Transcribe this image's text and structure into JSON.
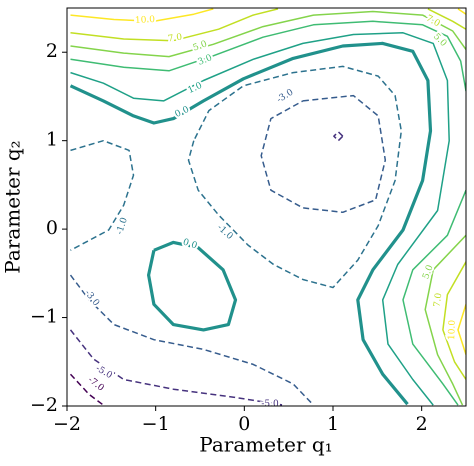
{
  "chart_data": {
    "type": "contour",
    "xlabel": "Parameter q₁",
    "ylabel": "Parameter q₂",
    "xlim": [
      -2,
      2.5
    ],
    "ylim": [
      -2,
      2.5
    ],
    "xticks": [
      {
        "value": -2,
        "label": "−2"
      },
      {
        "value": -1,
        "label": "−1"
      },
      0,
      1,
      2
    ],
    "yticks": [
      {
        "value": -2,
        "label": "−2"
      },
      {
        "value": -1,
        "label": "−1"
      },
      0,
      1,
      2
    ],
    "series": [
      {
        "level": -7,
        "label": "-7.0",
        "color": "#440154",
        "x": [
          -1.96,
          -1.75,
          -1.59
        ],
        "y": [
          -1.64,
          -1.87,
          -1.99
        ]
      },
      {
        "level": -5,
        "label": "-5.0",
        "color": "#46327e",
        "x": [
          -1.96,
          -1.7,
          -1.36,
          -0.8,
          -0.12,
          0.44,
          null,
          1.11,
          1.06,
          1.01,
          1.06,
          1.11
        ],
        "y": [
          -1.14,
          -1.47,
          -1.7,
          -1.81,
          -1.9,
          -1.99,
          null,
          1.05,
          1.1,
          1.05,
          1.0,
          1.05
        ]
      },
      {
        "level": -3,
        "label": "-3.0",
        "color": "#365c8d",
        "x": [
          0.66,
          1.23,
          1.51,
          1.59,
          1.48,
          1.11,
          0.66,
          0.3,
          0.19,
          0.3,
          0.66,
          null,
          -1.96,
          -1.75,
          -1.47,
          -1.02,
          -0.46,
          0.1,
          0.55,
          0.78
        ],
        "y": [
          1.45,
          1.51,
          1.28,
          0.78,
          0.33,
          0.19,
          0.24,
          0.44,
          0.83,
          1.25,
          1.45,
          null,
          -0.52,
          -0.8,
          -1.08,
          -1.25,
          -1.36,
          -1.53,
          -1.75,
          -1.99
        ]
      },
      {
        "level": -1,
        "label": "-1.0",
        "color": "#2c728e",
        "x": [
          -1.96,
          -1.59,
          -1.3,
          -1.25,
          -1.36,
          -1.53,
          -1.96,
          null,
          -0.57,
          -0.63,
          -0.52,
          -0.29,
          0.04,
          0.33,
          0.66,
          1.0,
          1.28,
          1.51,
          1.7,
          1.77,
          1.7,
          1.51,
          1.11,
          0.55,
          -0.01,
          -0.4,
          -0.57
        ],
        "y": [
          0.89,
          1.0,
          0.89,
          0.61,
          0.27,
          -0.01,
          -0.24,
          null,
          1.0,
          0.78,
          0.44,
          0.16,
          -0.18,
          -0.4,
          -0.57,
          -0.66,
          -0.35,
          0.04,
          0.55,
          1.11,
          1.51,
          1.73,
          1.84,
          1.77,
          1.62,
          1.34,
          1.0
        ]
      },
      {
        "level": 0,
        "label": "0.0",
        "color": "#21918c",
        "x": [
          -1.96,
          -1.59,
          -1.25,
          -1.02,
          -0.8,
          -0.46,
          -0.01,
          0.55,
          1.11,
          1.56,
          1.9,
          2.07,
          2.1,
          2.01,
          1.79,
          1.45,
          1.28,
          1.34,
          1.56,
          1.84,
          null,
          -1.02,
          -0.8,
          -0.52,
          -0.24,
          -0.1,
          -0.18,
          -0.46,
          -0.8,
          -1.02,
          -1.08,
          -1.02
        ],
        "y": [
          1.62,
          1.45,
          1.28,
          1.2,
          1.25,
          1.45,
          1.7,
          1.93,
          2.07,
          2.1,
          2.01,
          1.68,
          1.11,
          0.55,
          -0.01,
          -0.46,
          -0.8,
          -1.25,
          -1.64,
          -1.98,
          null,
          -0.24,
          -0.15,
          -0.21,
          -0.46,
          -0.8,
          -1.08,
          -1.14,
          -1.08,
          -0.85,
          -0.52,
          -0.24
        ]
      },
      {
        "level": 1,
        "label": "1.0",
        "color": "#1fa187",
        "x": [
          -1.96,
          -1.59,
          -1.25,
          -0.91,
          -0.46,
          0.1,
          0.66,
          1.23,
          1.79,
          2.13,
          2.29,
          2.31,
          2.18,
          1.73,
          1.56,
          1.62,
          1.9,
          2.13
        ],
        "y": [
          1.77,
          1.65,
          1.48,
          1.45,
          1.68,
          1.92,
          2.1,
          2.2,
          2.22,
          2.1,
          1.68,
          1.0,
          0.21,
          -0.4,
          -0.8,
          -1.3,
          -1.7,
          -1.99
        ]
      },
      {
        "level": 3,
        "label": "3.0",
        "color": "#3fbc73",
        "x": [
          -1.96,
          -1.36,
          -0.85,
          -0.35,
          0.21,
          0.78,
          1.45,
          2.01,
          2.29,
          2.44,
          2.5,
          null,
          2.5,
          2.29,
          1.9,
          1.79,
          1.9,
          2.24,
          2.41
        ],
        "y": [
          1.92,
          1.83,
          1.79,
          1.96,
          2.17,
          2.31,
          2.35,
          2.31,
          2.18,
          1.9,
          1.56,
          null,
          0.44,
          -0.07,
          -0.46,
          -0.8,
          -1.3,
          -1.75,
          -1.99
        ]
      },
      {
        "level": 5,
        "label": "5.0",
        "color": "#84d44b",
        "x": [
          -1.96,
          -1.36,
          -0.85,
          -0.35,
          0.21,
          0.78,
          1.45,
          2.01,
          2.35,
          2.5,
          null,
          2.5,
          2.13,
          2.04,
          2.18,
          2.35,
          2.46
        ],
        "y": [
          2.07,
          1.99,
          1.95,
          2.09,
          2.29,
          2.42,
          2.46,
          2.42,
          2.24,
          2.03,
          null,
          -0.07,
          -0.46,
          -0.91,
          -1.42,
          -1.75,
          -1.99
        ]
      },
      {
        "level": 7,
        "label": "7.0",
        "color": "#c2df23",
        "x": [
          -1.96,
          -1.36,
          -0.8,
          -0.29,
          0.1,
          0.38,
          null,
          2.07,
          2.35,
          2.5,
          null,
          2.5,
          2.29,
          2.24,
          2.37,
          2.5
        ],
        "y": [
          2.22,
          2.15,
          2.13,
          2.26,
          2.42,
          2.49,
          null,
          2.49,
          2.35,
          2.26,
          null,
          -0.37,
          -0.74,
          -1.14,
          -1.5,
          -1.7
        ]
      },
      {
        "level": 10,
        "label": "10.0",
        "color": "#fde725",
        "x": [
          -1.96,
          -1.47,
          -1.02,
          -0.57,
          -0.35,
          null,
          2.41,
          2.5,
          null,
          2.5,
          2.41,
          2.5
        ],
        "y": [
          2.42,
          2.37,
          2.35,
          2.43,
          2.49,
          null,
          2.49,
          2.43,
          null,
          -0.85,
          -1.14,
          -1.42
        ]
      }
    ]
  }
}
